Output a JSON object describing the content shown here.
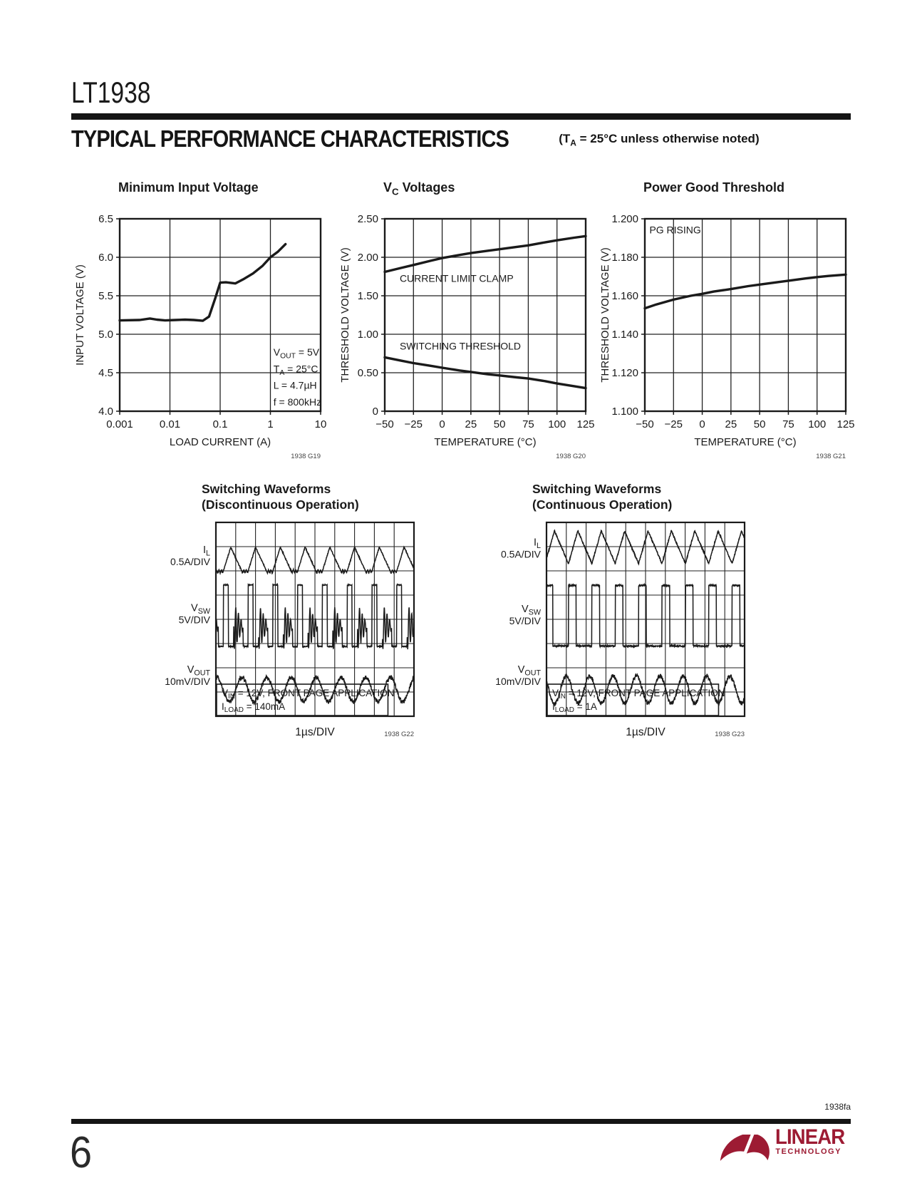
{
  "header": {
    "part": "LT1938",
    "section_title": "TYPICAL PERFORMANCE CHARACTERISTICS",
    "section_note": "(T_{A} = 25°C unless otherwise noted)"
  },
  "colors": {
    "ink": "#1a1a1a",
    "grid": "#222222",
    "fig_id": "#444444",
    "logo": "#9d1b33"
  },
  "chart_data": [
    {
      "id": "minimum-input-voltage",
      "type": "line",
      "title": "Minimum Input Voltage",
      "xlabel": "LOAD CURRENT (A)",
      "ylabel": "INPUT VOLTAGE (V)",
      "xscale": "log",
      "xlim": [
        0.001,
        10
      ],
      "ylim": [
        4.0,
        6.5
      ],
      "grid": true,
      "xticks": [
        {
          "v": 0.001,
          "label": "0.001"
        },
        {
          "v": 0.01,
          "label": "0.01"
        },
        {
          "v": 0.1,
          "label": "0.1"
        },
        {
          "v": 1,
          "label": "1"
        },
        {
          "v": 10,
          "label": "10"
        }
      ],
      "yticks": [
        {
          "v": 4.0,
          "label": "4.0"
        },
        {
          "v": 4.5,
          "label": "4.5"
        },
        {
          "v": 5.0,
          "label": "5.0"
        },
        {
          "v": 5.5,
          "label": "5.5"
        },
        {
          "v": 6.0,
          "label": "6.0"
        },
        {
          "v": 6.5,
          "label": "6.5"
        }
      ],
      "series": [
        {
          "name": "minimum-input-voltage",
          "points": [
            [
              0.001,
              5.18
            ],
            [
              0.0025,
              5.185
            ],
            [
              0.004,
              5.205
            ],
            [
              0.0055,
              5.19
            ],
            [
              0.008,
              5.18
            ],
            [
              0.013,
              5.185
            ],
            [
              0.02,
              5.19
            ],
            [
              0.03,
              5.185
            ],
            [
              0.045,
              5.175
            ],
            [
              0.06,
              5.23
            ],
            [
              0.08,
              5.47
            ],
            [
              0.1,
              5.67
            ],
            [
              0.13,
              5.675
            ],
            [
              0.2,
              5.66
            ],
            [
              0.3,
              5.72
            ],
            [
              0.45,
              5.79
            ],
            [
              0.7,
              5.89
            ],
            [
              1.0,
              6.0
            ],
            [
              1.4,
              6.07
            ],
            [
              2.0,
              6.17
            ]
          ]
        }
      ],
      "annotations": [
        {
          "x": 1.15,
          "y": 4.72,
          "line_step": 0.215,
          "lines": [
            "V_{OUT} = 5V",
            "T_{A} = 25°C",
            "L = 4.7µH",
            "f = 800kHz"
          ]
        }
      ],
      "fig_id": "1938 G19"
    },
    {
      "id": "vc-voltages",
      "type": "line",
      "title": "V_{C} Voltages",
      "xlabel": "TEMPERATURE (°C)",
      "ylabel": "THRESHOLD VOLTAGE (V)",
      "xscale": "linear",
      "xlim": [
        -50,
        125
      ],
      "ylim": [
        0,
        2.5
      ],
      "grid": true,
      "xticks": [
        {
          "v": -50,
          "label": "−50"
        },
        {
          "v": -25,
          "label": "−25"
        },
        {
          "v": 0,
          "label": "0"
        },
        {
          "v": 25,
          "label": "25"
        },
        {
          "v": 50,
          "label": "50"
        },
        {
          "v": 75,
          "label": "75"
        },
        {
          "v": 100,
          "label": "100"
        },
        {
          "v": 125,
          "label": "125"
        }
      ],
      "yticks": [
        {
          "v": 0,
          "label": "0"
        },
        {
          "v": 0.5,
          "label": "0.50"
        },
        {
          "v": 1.0,
          "label": "1.00"
        },
        {
          "v": 1.5,
          "label": "1.50"
        },
        {
          "v": 2.0,
          "label": "2.00"
        },
        {
          "v": 2.5,
          "label": "2.50"
        }
      ],
      "series": [
        {
          "name": "current-limit-clamp",
          "points": [
            [
              -50,
              1.81
            ],
            [
              -35,
              1.865
            ],
            [
              -25,
              1.9
            ],
            [
              -10,
              1.955
            ],
            [
              0,
              1.99
            ],
            [
              15,
              2.03
            ],
            [
              25,
              2.055
            ],
            [
              40,
              2.085
            ],
            [
              50,
              2.105
            ],
            [
              65,
              2.135
            ],
            [
              75,
              2.155
            ],
            [
              90,
              2.195
            ],
            [
              100,
              2.22
            ],
            [
              115,
              2.255
            ],
            [
              125,
              2.275
            ]
          ]
        },
        {
          "name": "switching-threshold",
          "points": [
            [
              -50,
              0.7
            ],
            [
              -35,
              0.655
            ],
            [
              -25,
              0.625
            ],
            [
              -10,
              0.59
            ],
            [
              0,
              0.565
            ],
            [
              15,
              0.53
            ],
            [
              25,
              0.51
            ],
            [
              40,
              0.48
            ],
            [
              50,
              0.465
            ],
            [
              65,
              0.44
            ],
            [
              75,
              0.425
            ],
            [
              90,
              0.39
            ],
            [
              100,
              0.36
            ],
            [
              115,
              0.325
            ],
            [
              125,
              0.3
            ]
          ]
        }
      ],
      "annotations": [
        {
          "x": -37,
          "y": 1.68,
          "line_step": 0,
          "lines": [
            "CURRENT LIMIT CLAMP"
          ]
        },
        {
          "x": -37,
          "y": 0.8,
          "line_step": 0,
          "lines": [
            "SWITCHING THRESHOLD"
          ]
        }
      ],
      "fig_id": "1938 G20"
    },
    {
      "id": "power-good-threshold",
      "type": "line",
      "title": "Power Good Threshold",
      "xlabel": "TEMPERATURE (°C)",
      "ylabel": "THRESHOLD VOLTAGE (V)",
      "xscale": "linear",
      "xlim": [
        -50,
        125
      ],
      "ylim": [
        1.1,
        1.2
      ],
      "grid": true,
      "xticks": [
        {
          "v": -50,
          "label": "−50"
        },
        {
          "v": -25,
          "label": "−25"
        },
        {
          "v": 0,
          "label": "0"
        },
        {
          "v": 25,
          "label": "25"
        },
        {
          "v": 50,
          "label": "50"
        },
        {
          "v": 75,
          "label": "75"
        },
        {
          "v": 100,
          "label": "100"
        },
        {
          "v": 125,
          "label": "125"
        }
      ],
      "yticks": [
        {
          "v": 1.1,
          "label": "1.100"
        },
        {
          "v": 1.12,
          "label": "1.120"
        },
        {
          "v": 1.14,
          "label": "1.140"
        },
        {
          "v": 1.16,
          "label": "1.160"
        },
        {
          "v": 1.18,
          "label": "1.180"
        },
        {
          "v": 1.2,
          "label": "1.200"
        }
      ],
      "series": [
        {
          "name": "pg-rising",
          "points": [
            [
              -50,
              1.1535
            ],
            [
              -40,
              1.1555
            ],
            [
              -25,
              1.158
            ],
            [
              -10,
              1.16
            ],
            [
              0,
              1.161
            ],
            [
              10,
              1.1622
            ],
            [
              25,
              1.1635
            ],
            [
              40,
              1.165
            ],
            [
              50,
              1.1658
            ],
            [
              65,
              1.167
            ],
            [
              75,
              1.1678
            ],
            [
              90,
              1.169
            ],
            [
              100,
              1.1697
            ],
            [
              110,
              1.1703
            ],
            [
              125,
              1.171
            ]
          ]
        }
      ],
      "annotations": [
        {
          "x": -46,
          "y": 1.1925,
          "line_step": 0,
          "lines": [
            "PG RISING"
          ]
        }
      ],
      "fig_id": "1938 G21"
    },
    {
      "id": "switching-waveforms-discontinuous",
      "type": "oscilloscope",
      "title_line1": "Switching Waveforms",
      "title_line2": "(Discontinuous Operation)",
      "grid": {
        "cols": 10,
        "rows": 8
      },
      "timebase": "1µs/DIV",
      "traces": [
        {
          "label": "I_{L}",
          "scale": "0.5A/DIV",
          "kind": "dcm_inductor",
          "period": 1.25,
          "top": 1.02,
          "base": 2.02,
          "label_row": 1.35
        },
        {
          "label": "V_{SW}",
          "scale": "5V/DIV",
          "kind": "dcm_switch",
          "period": 1.25,
          "high": 2.58,
          "low": 5.12,
          "ring_center": 4.3,
          "label_row": 3.75
        },
        {
          "label": "V_{OUT}",
          "scale": "10mV/DIV",
          "kind": "ripple",
          "period": 1.25,
          "center": 6.9,
          "amp": 0.5,
          "phase": 0.3,
          "label_row": 6.3
        }
      ],
      "note_lines": [
        "V_{IN} = 12V, FRONT PAGE APPLICATION",
        "I_{LOAD} = 140mA"
      ],
      "fig_id": "1938 G22"
    },
    {
      "id": "switching-waveforms-continuous",
      "type": "oscilloscope",
      "title_line1": "Switching Waveforms",
      "title_line2": "(Continuous Operation)",
      "grid": {
        "cols": 10,
        "rows": 8
      },
      "timebase": "1µs/DIV",
      "traces": [
        {
          "label": "I_{L}",
          "scale": "0.5A/DIV",
          "kind": "cont_inductor",
          "period": 1.18,
          "top": 0.35,
          "base": 1.7,
          "label_row": 1.05
        },
        {
          "label": "V_{SW}",
          "scale": "5V/DIV",
          "kind": "cont_switch",
          "period": 1.18,
          "high": 2.6,
          "low": 5.1,
          "duty": 0.33,
          "label_row": 3.8
        },
        {
          "label": "V_{OUT}",
          "scale": "10mV/DIV",
          "kind": "ripple",
          "period": 1.18,
          "center": 6.9,
          "amp": 0.56,
          "phase": 0.1,
          "label_row": 6.3
        }
      ],
      "note_lines": [
        "V_{IN} = 12V, FRONT PAGE APPLICATION",
        "I_{LOAD} = 1A"
      ],
      "fig_id": "1938 G23"
    }
  ],
  "footer": {
    "doc_code": "1938fa",
    "page_number": "6",
    "logo": {
      "primary": "LINEAR",
      "secondary": "TECHNOLOGY",
      "color": "#9d1b33"
    }
  }
}
